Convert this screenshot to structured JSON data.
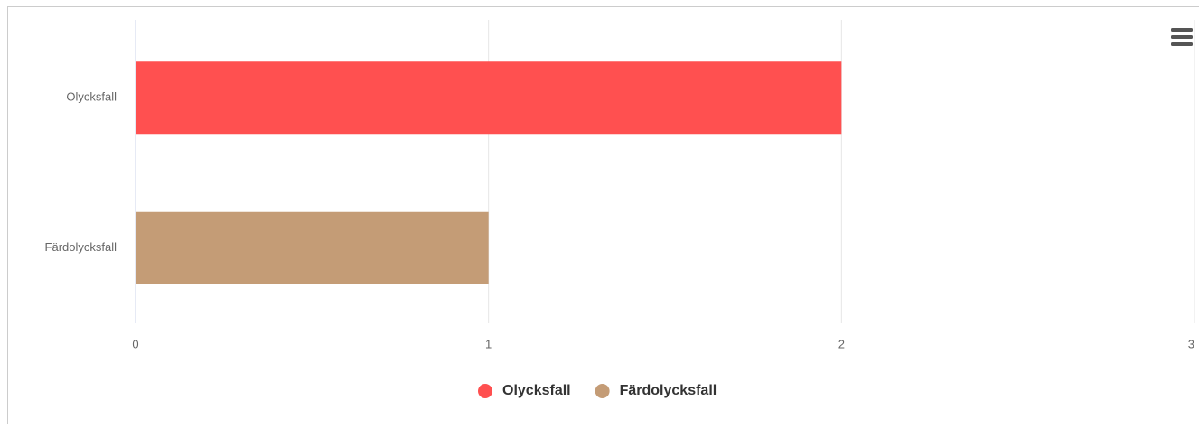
{
  "chart_data": {
    "type": "bar",
    "orientation": "horizontal",
    "categories": [
      "Olycksfall",
      "Färdolycksfall"
    ],
    "series": [
      {
        "name": "Olycksfall",
        "color": "#ff5050",
        "values": [
          2,
          null
        ]
      },
      {
        "name": "Färdolycksfall",
        "color": "#c49c76",
        "values": [
          null,
          1
        ]
      }
    ],
    "xlim": [
      0,
      3
    ],
    "xticks": [
      0,
      1,
      2,
      3
    ],
    "grid": true,
    "legend": "bottom"
  }
}
